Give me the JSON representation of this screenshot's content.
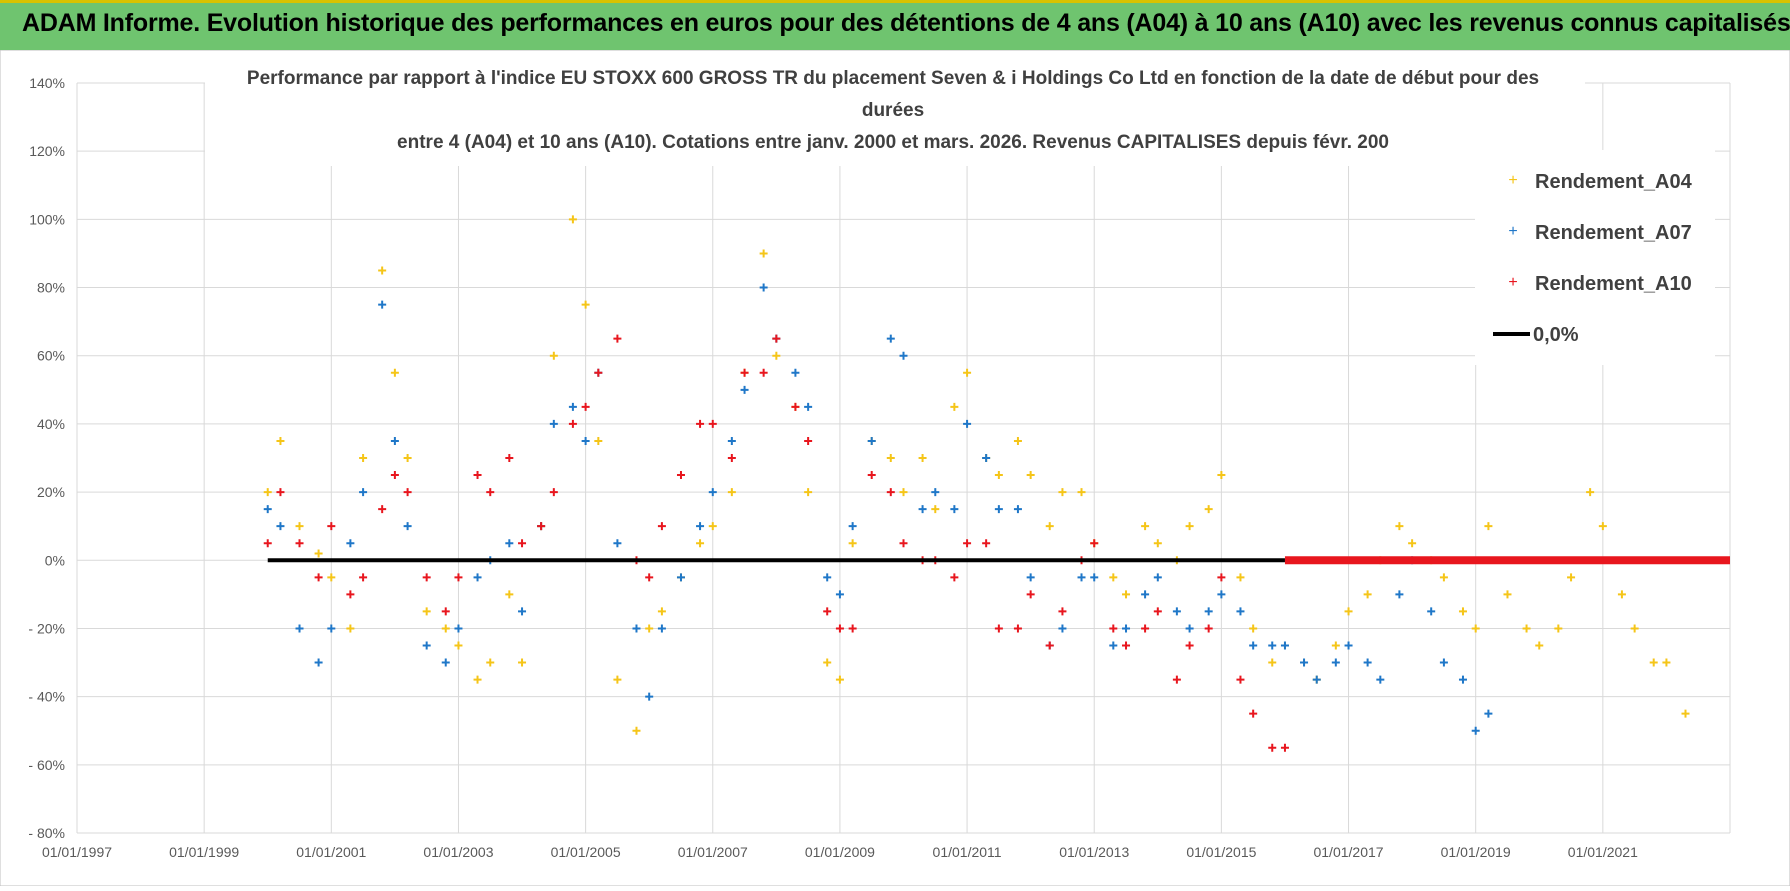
{
  "banner": {
    "title": "ADAM Informe. Evolution historique des performances en euros pour des détentions de 4 ans (A04) à 10 ans (A10) avec les revenus connus capitalisés"
  },
  "colors": {
    "banner_bg": "#6fc46f",
    "A04": "#f5c518",
    "A07": "#1f77c8",
    "A10": "#e8161e",
    "zero": "#000000"
  },
  "chart_data": {
    "type": "scatter",
    "title_lines": [
      "Performance par rapport à l'indice EU STOXX 600 GROSS TR  du placement Seven & i Holdings Co Ltd en fonction de la date de début pour des",
      "durées",
      "entre 4 (A04) et 10 ans (A10).  Cotations entre janv. 2000 et mars. 2026.  Revenus CAPITALISES depuis févr. 200"
    ],
    "x_tick_labels": [
      "01/01/1997",
      "01/01/1999",
      "01/01/2001",
      "01/01/2003",
      "01/01/2005",
      "01/01/2007",
      "01/01/2009",
      "01/01/2011",
      "01/01/2013",
      "01/01/2015",
      "01/01/2017",
      "01/01/2019",
      "01/01/2021"
    ],
    "xlim": [
      1997.0,
      2023.0
    ],
    "y_tick_labels": [
      "140%",
      "120%",
      "100%",
      "80%",
      "60%",
      "40%",
      "20%",
      "0%",
      "- 20%",
      "- 40%",
      "- 60%",
      "- 80%"
    ],
    "ylim": [
      -0.8,
      1.4
    ],
    "grid": true,
    "legend_position": "top-right",
    "legend": [
      "Rendement_A04",
      "Rendement_A07",
      "Rendement_A10",
      "0,0%"
    ],
    "series": [
      {
        "name": "Rendement_A04",
        "marker": "+",
        "x": [
          2000.0,
          2000.2,
          2000.5,
          2000.8,
          2001.0,
          2001.3,
          2001.5,
          2001.8,
          2002.0,
          2002.2,
          2002.5,
          2002.8,
          2003.0,
          2003.3,
          2003.5,
          2003.8,
          2004.0,
          2004.3,
          2004.5,
          2004.8,
          2005.0,
          2005.2,
          2005.5,
          2005.8,
          2006.0,
          2006.2,
          2006.5,
          2006.8,
          2007.0,
          2007.3,
          2007.5,
          2007.8,
          2008.0,
          2008.3,
          2008.5,
          2008.8,
          2009.0,
          2009.2,
          2009.5,
          2009.8,
          2010.0,
          2010.3,
          2010.5,
          2010.8,
          2011.0,
          2011.3,
          2011.5,
          2011.8,
          2012.0,
          2012.3,
          2012.5,
          2012.8,
          2013.0,
          2013.3,
          2013.5,
          2013.8,
          2014.0,
          2014.3,
          2014.5,
          2014.8,
          2015.0,
          2015.3,
          2015.5,
          2015.8,
          2016.0,
          2016.3,
          2016.5,
          2016.8,
          2017.0,
          2017.3,
          2017.5,
          2017.8,
          2018.0,
          2018.3,
          2018.5,
          2018.8,
          2019.0,
          2019.2,
          2019.5,
          2019.8,
          2020.0,
          2020.3,
          2020.5,
          2020.8,
          2021.0,
          2021.3,
          2021.5,
          2021.8,
          2022.0,
          2022.3
        ],
        "y": [
          0.2,
          0.35,
          0.1,
          0.02,
          -0.05,
          -0.2,
          0.3,
          0.85,
          0.55,
          0.3,
          -0.15,
          -0.2,
          -0.25,
          -0.35,
          -0.3,
          -0.1,
          -0.3,
          0.1,
          0.6,
          1.0,
          0.75,
          0.35,
          -0.35,
          -0.5,
          -0.2,
          -0.15,
          -0.05,
          0.05,
          0.1,
          0.2,
          0.55,
          0.9,
          0.6,
          0.45,
          0.2,
          -0.3,
          -0.35,
          0.05,
          0.35,
          0.3,
          0.2,
          0.3,
          0.15,
          0.45,
          0.55,
          0.3,
          0.25,
          0.35,
          0.25,
          0.1,
          0.2,
          0.2,
          0.05,
          -0.05,
          -0.1,
          0.1,
          0.05,
          0.0,
          0.1,
          0.15,
          0.25,
          -0.05,
          -0.2,
          -0.3,
          -0.25,
          -0.3,
          -0.35,
          -0.25,
          -0.15,
          -0.1,
          0.0,
          0.1,
          0.05,
          0.0,
          -0.05,
          -0.15,
          -0.2,
          0.1,
          -0.1,
          -0.2,
          -0.25,
          -0.2,
          -0.05,
          0.2,
          0.1,
          -0.1,
          -0.2,
          -0.3,
          -0.3,
          -0.45
        ]
      },
      {
        "name": "Rendement_A07",
        "marker": "+",
        "x": [
          2000.0,
          2000.2,
          2000.5,
          2000.8,
          2001.0,
          2001.3,
          2001.5,
          2001.8,
          2002.0,
          2002.2,
          2002.5,
          2002.8,
          2003.0,
          2003.3,
          2003.5,
          2003.8,
          2004.0,
          2004.3,
          2004.5,
          2004.8,
          2005.0,
          2005.2,
          2005.5,
          2005.8,
          2006.0,
          2006.2,
          2006.5,
          2006.8,
          2007.0,
          2007.3,
          2007.5,
          2007.8,
          2008.0,
          2008.3,
          2008.5,
          2008.8,
          2009.0,
          2009.2,
          2009.5,
          2009.8,
          2010.0,
          2010.3,
          2010.5,
          2010.8,
          2011.0,
          2011.3,
          2011.5,
          2011.8,
          2012.0,
          2012.3,
          2012.5,
          2012.8,
          2013.0,
          2013.3,
          2013.5,
          2013.8,
          2014.0,
          2014.3,
          2014.5,
          2014.8,
          2015.0,
          2015.3,
          2015.5,
          2015.8,
          2016.0,
          2016.3,
          2016.5,
          2016.8,
          2017.0,
          2017.3,
          2017.5,
          2017.8,
          2018.0,
          2018.3,
          2018.5,
          2018.8,
          2019.0,
          2019.2
        ],
        "y": [
          0.15,
          0.1,
          -0.2,
          -0.3,
          -0.2,
          0.05,
          0.2,
          0.75,
          0.35,
          0.1,
          -0.25,
          -0.3,
          -0.2,
          -0.05,
          0.0,
          0.05,
          -0.15,
          0.1,
          0.4,
          0.45,
          0.35,
          0.55,
          0.05,
          -0.2,
          -0.4,
          -0.2,
          -0.05,
          0.1,
          0.2,
          0.35,
          0.5,
          0.8,
          0.65,
          0.55,
          0.45,
          -0.05,
          -0.1,
          0.1,
          0.35,
          0.65,
          0.6,
          0.15,
          0.2,
          0.15,
          0.4,
          0.3,
          0.15,
          0.15,
          -0.05,
          -0.25,
          -0.2,
          -0.05,
          -0.05,
          -0.25,
          -0.2,
          -0.1,
          -0.05,
          -0.15,
          -0.2,
          -0.15,
          -0.1,
          -0.15,
          -0.25,
          -0.25,
          -0.25,
          -0.3,
          -0.35,
          -0.3,
          -0.25,
          -0.3,
          -0.35,
          -0.1,
          0.0,
          -0.15,
          -0.3,
          -0.35,
          -0.5,
          -0.45
        ]
      },
      {
        "name": "Rendement_A10",
        "marker": "+",
        "x": [
          2000.0,
          2000.2,
          2000.5,
          2000.8,
          2001.0,
          2001.3,
          2001.5,
          2001.8,
          2002.0,
          2002.2,
          2002.5,
          2002.8,
          2003.0,
          2003.3,
          2003.5,
          2003.8,
          2004.0,
          2004.3,
          2004.5,
          2004.8,
          2005.0,
          2005.2,
          2005.5,
          2005.8,
          2006.0,
          2006.2,
          2006.5,
          2006.8,
          2007.0,
          2007.3,
          2007.5,
          2007.8,
          2008.0,
          2008.3,
          2008.5,
          2008.8,
          2009.0,
          2009.2,
          2009.5,
          2009.8,
          2010.0,
          2010.3,
          2010.5,
          2010.8,
          2011.0,
          2011.3,
          2011.5,
          2011.8,
          2012.0,
          2012.3,
          2012.5,
          2012.8,
          2013.0,
          2013.3,
          2013.5,
          2013.8,
          2014.0,
          2014.3,
          2014.5,
          2014.8,
          2015.0,
          2015.3,
          2015.5,
          2015.8,
          2016.0
        ],
        "y": [
          0.05,
          0.2,
          0.05,
          -0.05,
          0.1,
          -0.1,
          -0.05,
          0.15,
          0.25,
          0.2,
          -0.05,
          -0.15,
          -0.05,
          0.25,
          0.2,
          0.3,
          0.05,
          0.1,
          0.2,
          0.4,
          0.45,
          0.55,
          0.65,
          0.0,
          -0.05,
          0.1,
          0.25,
          0.4,
          0.4,
          0.3,
          0.55,
          0.55,
          0.65,
          0.45,
          0.35,
          -0.15,
          -0.2,
          -0.2,
          0.25,
          0.2,
          0.05,
          0.0,
          0.0,
          -0.05,
          0.05,
          0.05,
          -0.2,
          -0.2,
          -0.1,
          -0.25,
          -0.15,
          0.0,
          0.05,
          -0.2,
          -0.25,
          -0.2,
          -0.15,
          -0.35,
          -0.25,
          -0.2,
          -0.05,
          -0.35,
          -0.45,
          -0.55,
          -0.55
        ]
      },
      {
        "name": "0,0%",
        "type": "line",
        "x": [
          2000.0,
          2023.0
        ],
        "y": [
          0.0,
          0.0
        ]
      }
    ],
    "zero_red_segment_x": [
      2016.0,
      2023.0
    ]
  }
}
